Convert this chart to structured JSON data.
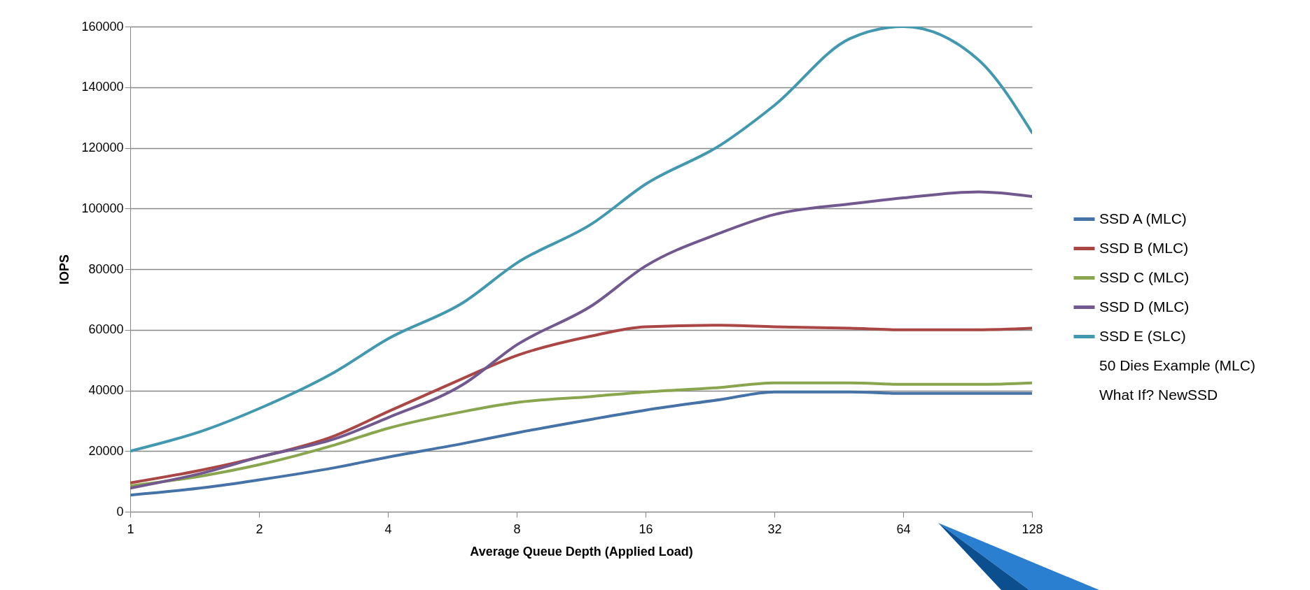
{
  "chart_data": {
    "type": "line",
    "xlabel": "Average Queue Depth (Applied Load)",
    "ylabel": "IOPS",
    "x": [
      1,
      1.5,
      2,
      3,
      4,
      6,
      8,
      12,
      16,
      24,
      32,
      48,
      64,
      96,
      128
    ],
    "log": "x",
    "xlim": [
      1,
      128
    ],
    "xticks": [
      1,
      2,
      4,
      8,
      16,
      32,
      64,
      128
    ],
    "ylim": [
      0,
      160000
    ],
    "yticks": [
      0,
      20000,
      40000,
      60000,
      80000,
      100000,
      120000,
      140000,
      160000
    ],
    "grid": "y",
    "legend": "right",
    "marker": "none",
    "line_style": "solid",
    "series": [
      {
        "name": "SSD A (MLC)",
        "color": "#4572a7",
        "values": [
          5500,
          8000,
          10500,
          14500,
          18000,
          22500,
          26000,
          30500,
          33500,
          37000,
          39500,
          39500,
          39000,
          39000,
          39000
        ]
      },
      {
        "name": "SSD B (MLC)",
        "color": "#aa4643",
        "values": [
          9500,
          14000,
          18000,
          25000,
          33000,
          44000,
          51500,
          58000,
          61000,
          61500,
          61000,
          60500,
          60000,
          60000,
          60500
        ]
      },
      {
        "name": "SSD C (MLC)",
        "color": "#89a54e",
        "values": [
          8500,
          12000,
          15500,
          22000,
          27500,
          33000,
          36000,
          38000,
          39500,
          41000,
          42500,
          42500,
          42000,
          42000,
          42500
        ]
      },
      {
        "name": "SSD D (MLC)",
        "color": "#71588f",
        "values": [
          7800,
          13000,
          18000,
          24000,
          31000,
          42000,
          55000,
          68000,
          81000,
          92000,
          98000,
          101500,
          103500,
          105500,
          104000
        ]
      },
      {
        "name": "SSD E (SLC)",
        "color": "#4198af",
        "values": [
          20000,
          27000,
          34000,
          46000,
          57000,
          69000,
          82000,
          95000,
          108000,
          121000,
          134000,
          156000,
          160000,
          149000,
          125000
        ]
      },
      {
        "name": "50 Dies Example (MLC)",
        "values": [
          null,
          null,
          null,
          null,
          null,
          null,
          null,
          null,
          null,
          null,
          null,
          null,
          null,
          null,
          null
        ]
      },
      {
        "name": "What If? NewSSD",
        "values": [
          null,
          null,
          null,
          null,
          null,
          null,
          null,
          null,
          null,
          null,
          null,
          null,
          null,
          null,
          null
        ]
      }
    ]
  }
}
